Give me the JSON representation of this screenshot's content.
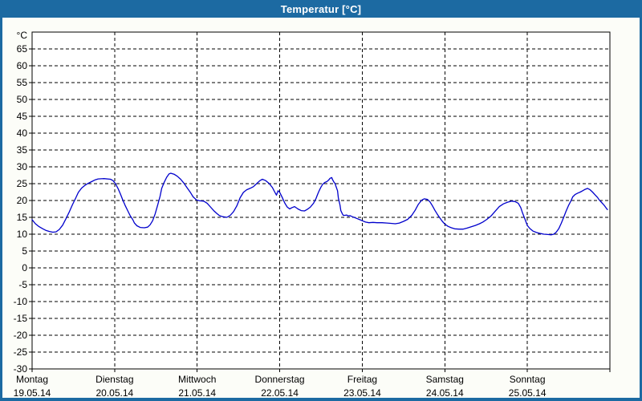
{
  "window": {
    "title": "Temperatur [°C]"
  },
  "colors": {
    "titlebar": "#1c6aa2",
    "window_border": "#1c6aa2",
    "title_text": "#ffffff",
    "chart_bg": "#fcfdf8",
    "plot_bg": "#ffffff",
    "grid": "#000000",
    "frame": "#000000",
    "tick_text": "#000000",
    "line": "#0000cc"
  },
  "chart_data": {
    "type": "line",
    "title": "Temperatur [°C]",
    "unit_label": "°C",
    "ylim": [
      -30,
      70
    ],
    "y_tick_step": 5,
    "y_ticks": [
      65,
      60,
      55,
      50,
      45,
      40,
      35,
      30,
      25,
      20,
      15,
      10,
      5,
      0,
      -5,
      -10,
      -15,
      -20,
      -25,
      -30
    ],
    "grid": "dashed-horizontal-and-vertical",
    "legend_position": "none",
    "x_days": [
      {
        "label": "Montag",
        "date": "19.05.14"
      },
      {
        "label": "Dienstag",
        "date": "20.05.14"
      },
      {
        "label": "Mittwoch",
        "date": "21.05.14"
      },
      {
        "label": "Donnerstag",
        "date": "22.05.14"
      },
      {
        "label": "Freitag",
        "date": "23.05.14"
      },
      {
        "label": "Samstag",
        "date": "24.05.14"
      },
      {
        "label": "Sonntag",
        "date": "25.05.14"
      }
    ],
    "series": [
      {
        "name": "Temperatur",
        "color": "#0000cc",
        "points": [
          [
            0.0,
            14.3
          ],
          [
            0.04,
            13.1
          ],
          [
            0.08,
            12.3
          ],
          [
            0.13,
            11.6
          ],
          [
            0.17,
            11.1
          ],
          [
            0.21,
            10.8
          ],
          [
            0.25,
            10.6
          ],
          [
            0.29,
            10.7
          ],
          [
            0.33,
            11.4
          ],
          [
            0.37,
            12.7
          ],
          [
            0.41,
            14.6
          ],
          [
            0.45,
            16.6
          ],
          [
            0.49,
            18.8
          ],
          [
            0.53,
            20.8
          ],
          [
            0.56,
            22.4
          ],
          [
            0.6,
            23.7
          ],
          [
            0.64,
            24.5
          ],
          [
            0.68,
            25.1
          ],
          [
            0.72,
            25.6
          ],
          [
            0.76,
            26.1
          ],
          [
            0.8,
            26.4
          ],
          [
            0.87,
            26.5
          ],
          [
            0.95,
            26.3
          ],
          [
            0.98,
            25.9
          ],
          [
            1.01,
            25.0
          ],
          [
            1.04,
            23.6
          ],
          [
            1.07,
            21.9
          ],
          [
            1.1,
            20.1
          ],
          [
            1.13,
            18.4
          ],
          [
            1.16,
            16.9
          ],
          [
            1.19,
            15.4
          ],
          [
            1.22,
            14.3
          ],
          [
            1.24,
            13.3
          ],
          [
            1.27,
            12.5
          ],
          [
            1.31,
            12.0
          ],
          [
            1.36,
            11.9
          ],
          [
            1.4,
            12.1
          ],
          [
            1.43,
            12.8
          ],
          [
            1.46,
            14.0
          ],
          [
            1.49,
            16.0
          ],
          [
            1.52,
            18.5
          ],
          [
            1.55,
            21.2
          ],
          [
            1.57,
            23.6
          ],
          [
            1.6,
            25.4
          ],
          [
            1.63,
            26.9
          ],
          [
            1.66,
            27.9
          ],
          [
            1.68,
            28.1
          ],
          [
            1.72,
            27.8
          ],
          [
            1.76,
            27.2
          ],
          [
            1.8,
            26.3
          ],
          [
            1.84,
            25.1
          ],
          [
            1.88,
            23.7
          ],
          [
            1.92,
            22.3
          ],
          [
            1.95,
            21.1
          ],
          [
            1.99,
            20.2
          ],
          [
            2.03,
            19.9
          ],
          [
            2.08,
            19.8
          ],
          [
            2.12,
            19.2
          ],
          [
            2.16,
            18.1
          ],
          [
            2.2,
            17.0
          ],
          [
            2.24,
            16.1
          ],
          [
            2.27,
            15.5
          ],
          [
            2.31,
            15.2
          ],
          [
            2.36,
            15.0
          ],
          [
            2.4,
            15.6
          ],
          [
            2.44,
            16.7
          ],
          [
            2.48,
            18.4
          ],
          [
            2.52,
            20.8
          ],
          [
            2.56,
            22.4
          ],
          [
            2.6,
            23.2
          ],
          [
            2.64,
            23.6
          ],
          [
            2.68,
            24.1
          ],
          [
            2.72,
            25.0
          ],
          [
            2.76,
            25.9
          ],
          [
            2.79,
            26.3
          ],
          [
            2.83,
            25.9
          ],
          [
            2.87,
            25.1
          ],
          [
            2.91,
            23.9
          ],
          [
            2.94,
            22.5
          ],
          [
            2.96,
            21.6
          ],
          [
            2.98,
            22.9
          ],
          [
            3.0,
            22.4
          ],
          [
            3.03,
            20.9
          ],
          [
            3.06,
            19.3
          ],
          [
            3.09,
            18.1
          ],
          [
            3.12,
            17.5
          ],
          [
            3.15,
            17.9
          ],
          [
            3.18,
            18.2
          ],
          [
            3.22,
            17.5
          ],
          [
            3.26,
            17.0
          ],
          [
            3.3,
            16.9
          ],
          [
            3.33,
            17.3
          ],
          [
            3.37,
            18.0
          ],
          [
            3.41,
            19.2
          ],
          [
            3.44,
            20.6
          ],
          [
            3.46,
            21.9
          ],
          [
            3.48,
            23.0
          ],
          [
            3.5,
            24.0
          ],
          [
            3.52,
            24.8
          ],
          [
            3.55,
            25.4
          ],
          [
            3.57,
            25.6
          ],
          [
            3.59,
            26.0
          ],
          [
            3.61,
            26.6
          ],
          [
            3.63,
            26.8
          ],
          [
            3.64,
            26.2
          ],
          [
            3.66,
            25.3
          ],
          [
            3.67,
            25.1
          ],
          [
            3.68,
            24.3
          ],
          [
            3.7,
            22.9
          ],
          [
            3.71,
            20.8
          ],
          [
            3.73,
            18.6
          ],
          [
            3.74,
            17.0
          ],
          [
            3.76,
            16.0
          ],
          [
            3.77,
            15.6
          ],
          [
            3.79,
            15.6
          ],
          [
            3.81,
            15.7
          ],
          [
            3.83,
            15.4
          ],
          [
            3.85,
            15.5
          ],
          [
            3.88,
            15.2
          ],
          [
            3.91,
            14.9
          ],
          [
            3.94,
            14.6
          ],
          [
            3.97,
            14.3
          ],
          [
            4.0,
            14.0
          ],
          [
            4.04,
            13.6
          ],
          [
            4.08,
            13.4
          ],
          [
            4.13,
            13.5
          ],
          [
            4.18,
            13.4
          ],
          [
            4.24,
            13.4
          ],
          [
            4.3,
            13.3
          ],
          [
            4.36,
            13.2
          ],
          [
            4.4,
            13.1
          ],
          [
            4.45,
            13.3
          ],
          [
            4.5,
            13.8
          ],
          [
            4.55,
            14.4
          ],
          [
            4.6,
            15.6
          ],
          [
            4.64,
            17.1
          ],
          [
            4.68,
            18.9
          ],
          [
            4.72,
            20.1
          ],
          [
            4.75,
            20.5
          ],
          [
            4.79,
            20.3
          ],
          [
            4.82,
            19.6
          ],
          [
            4.85,
            18.4
          ],
          [
            4.88,
            17.1
          ],
          [
            4.91,
            15.9
          ],
          [
            4.94,
            14.8
          ],
          [
            4.97,
            13.8
          ],
          [
            5.0,
            13.0
          ],
          [
            5.04,
            12.3
          ],
          [
            5.08,
            11.9
          ],
          [
            5.12,
            11.6
          ],
          [
            5.17,
            11.5
          ],
          [
            5.22,
            11.5
          ],
          [
            5.27,
            11.8
          ],
          [
            5.32,
            12.2
          ],
          [
            5.37,
            12.6
          ],
          [
            5.42,
            13.1
          ],
          [
            5.46,
            13.6
          ],
          [
            5.51,
            14.4
          ],
          [
            5.56,
            15.4
          ],
          [
            5.61,
            16.8
          ],
          [
            5.66,
            18.2
          ],
          [
            5.71,
            19.0
          ],
          [
            5.76,
            19.5
          ],
          [
            5.81,
            19.8
          ],
          [
            5.85,
            19.7
          ],
          [
            5.89,
            19.2
          ],
          [
            5.92,
            17.9
          ],
          [
            5.94,
            16.4
          ],
          [
            5.97,
            14.5
          ],
          [
            6.0,
            12.6
          ],
          [
            6.03,
            11.7
          ],
          [
            6.07,
            10.9
          ],
          [
            6.11,
            10.5
          ],
          [
            6.16,
            10.2
          ],
          [
            6.2,
            10.0
          ],
          [
            6.25,
            9.9
          ],
          [
            6.29,
            9.8
          ],
          [
            6.32,
            10.0
          ],
          [
            6.35,
            10.6
          ],
          [
            6.38,
            11.6
          ],
          [
            6.41,
            13.2
          ],
          [
            6.44,
            15.0
          ],
          [
            6.47,
            16.9
          ],
          [
            6.5,
            18.6
          ],
          [
            6.53,
            20.0
          ],
          [
            6.55,
            21.1
          ],
          [
            6.58,
            21.8
          ],
          [
            6.61,
            22.2
          ],
          [
            6.64,
            22.5
          ],
          [
            6.67,
            22.9
          ],
          [
            6.7,
            23.3
          ],
          [
            6.73,
            23.6
          ],
          [
            6.76,
            23.2
          ],
          [
            6.79,
            22.5
          ],
          [
            6.82,
            21.7
          ],
          [
            6.85,
            20.9
          ],
          [
            6.87,
            20.2
          ],
          [
            6.9,
            19.4
          ],
          [
            6.93,
            18.6
          ],
          [
            6.96,
            17.6
          ],
          [
            6.97,
            17.3
          ]
        ]
      }
    ]
  }
}
